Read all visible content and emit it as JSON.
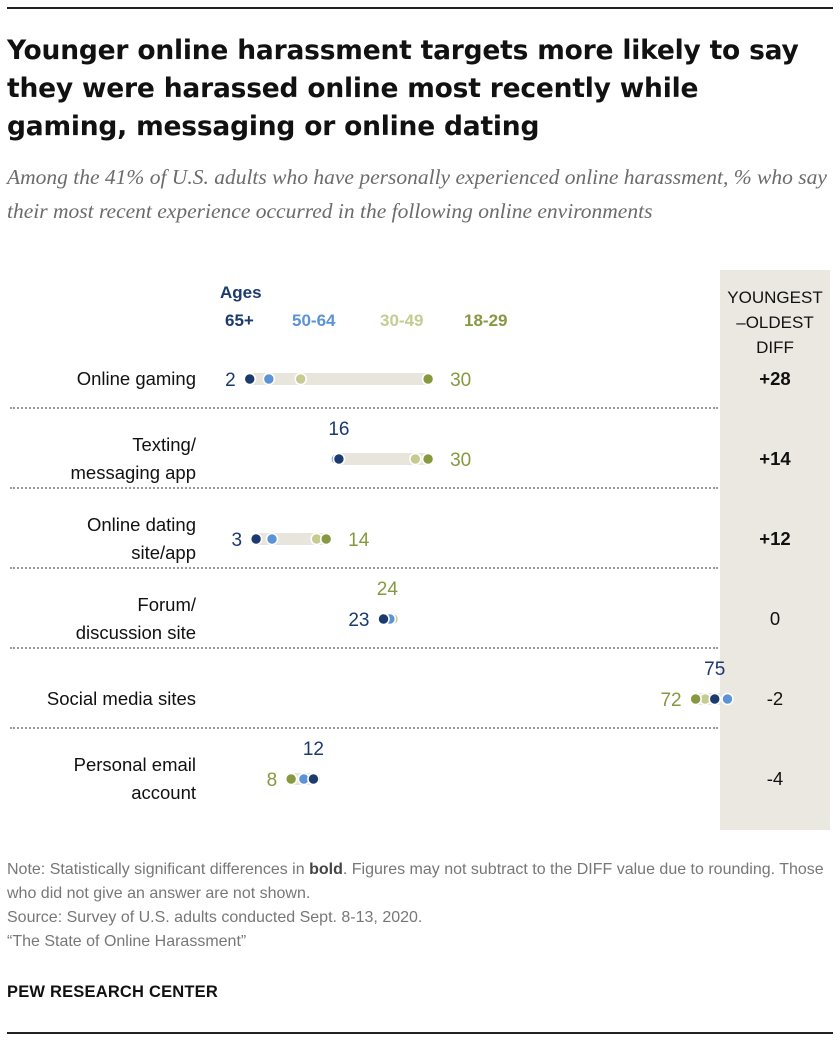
{
  "title": "Younger online harassment targets more likely to say they were harassed online most recently while gaming, messaging or online dating",
  "subtitle": "Among the 41% of U.S. adults who have personally experienced online harassment, % who say their most recent experience occurred in the following online environments",
  "legend": {
    "title": "Ages",
    "items": [
      {
        "label": "65+",
        "color": "#1b3a6e"
      },
      {
        "label": "50-64",
        "color": "#5b93d6"
      },
      {
        "label": "30-49",
        "color": "#c5cc92"
      },
      {
        "label": "18-29",
        "color": "#869840"
      }
    ]
  },
  "diff_header": [
    "YOUNGEST",
    "–OLDEST",
    "DIFF"
  ],
  "chart_data": {
    "type": "dot-range",
    "series": [
      "65+",
      "50-64",
      "30-49",
      "18-29"
    ],
    "colors": {
      "65+": "#1b3a6e",
      "50-64": "#5b93d6",
      "30-49": "#c5cc92",
      "18-29": "#869840"
    },
    "xlim": [
      0,
      75
    ],
    "rows": [
      {
        "label": [
          "Online gaming"
        ],
        "values": {
          "65+": 2,
          "50-64": 5,
          "30-49": 10,
          "18-29": 30
        },
        "labels": [
          {
            "text": "2",
            "series": "65+",
            "pos": "left"
          },
          {
            "text": "30",
            "series": "18-29",
            "pos": "right"
          }
        ],
        "diff": "+28",
        "bold": true
      },
      {
        "label": [
          "Texting/",
          "messaging app"
        ],
        "values": {
          "65+": 16,
          "50-64": 15.6,
          "30-49": 28,
          "18-29": 30
        },
        "labels": [
          {
            "text": "16",
            "series": "65+",
            "pos": "above"
          },
          {
            "text": "30",
            "series": "18-29",
            "pos": "right"
          }
        ],
        "diff": "+14",
        "bold": true
      },
      {
        "label": [
          "Online dating",
          "site/app"
        ],
        "values": {
          "65+": 3,
          "50-64": 5.5,
          "30-49": 12.5,
          "18-29": 14
        },
        "labels": [
          {
            "text": "3",
            "series": "65+",
            "pos": "left"
          },
          {
            "text": "14",
            "series": "18-29",
            "pos": "right"
          }
        ],
        "diff": "+12",
        "bold": true
      },
      {
        "label": [
          "Forum/",
          "discussion site"
        ],
        "values": {
          "65+": 23,
          "50-64": 24,
          "30-49": 24.5,
          "18-29": 23.6
        },
        "labels": [
          {
            "text": "23",
            "series": "65+",
            "pos": "left"
          },
          {
            "text": "24",
            "series": "18-29",
            "pos": "above"
          }
        ],
        "diff": "0",
        "bold": false
      },
      {
        "label": [
          "Social media sites"
        ],
        "values": {
          "65+": 75,
          "50-64": 77,
          "30-49": 73.5,
          "18-29": 72
        },
        "labels": [
          {
            "text": "75",
            "series": "65+",
            "pos": "above"
          },
          {
            "text": "72",
            "series": "18-29",
            "pos": "left"
          }
        ],
        "diff": "-2",
        "bold": false
      },
      {
        "label": [
          "Personal email",
          "account"
        ],
        "values": {
          "65+": 12,
          "50-64": 10.5,
          "30-49": 12.3,
          "18-29": 8.5
        },
        "labels": [
          {
            "text": "12",
            "series": "65+",
            "pos": "above"
          },
          {
            "text": "8",
            "series": "18-29",
            "pos": "left"
          }
        ],
        "diff": "-4",
        "bold": false
      }
    ]
  },
  "note": {
    "prefix": "Note: Statistically significant differences in ",
    "bold_word": "bold",
    "suffix": ". Figures may not subtract to the DIFF value due to rounding. Those who did not give an answer are not shown.",
    "source": "Source: Survey of U.S. adults conducted Sept. 8-13, 2020.",
    "report": "“The State of Online Harassment”"
  },
  "brand": "PEW RESEARCH CENTER"
}
